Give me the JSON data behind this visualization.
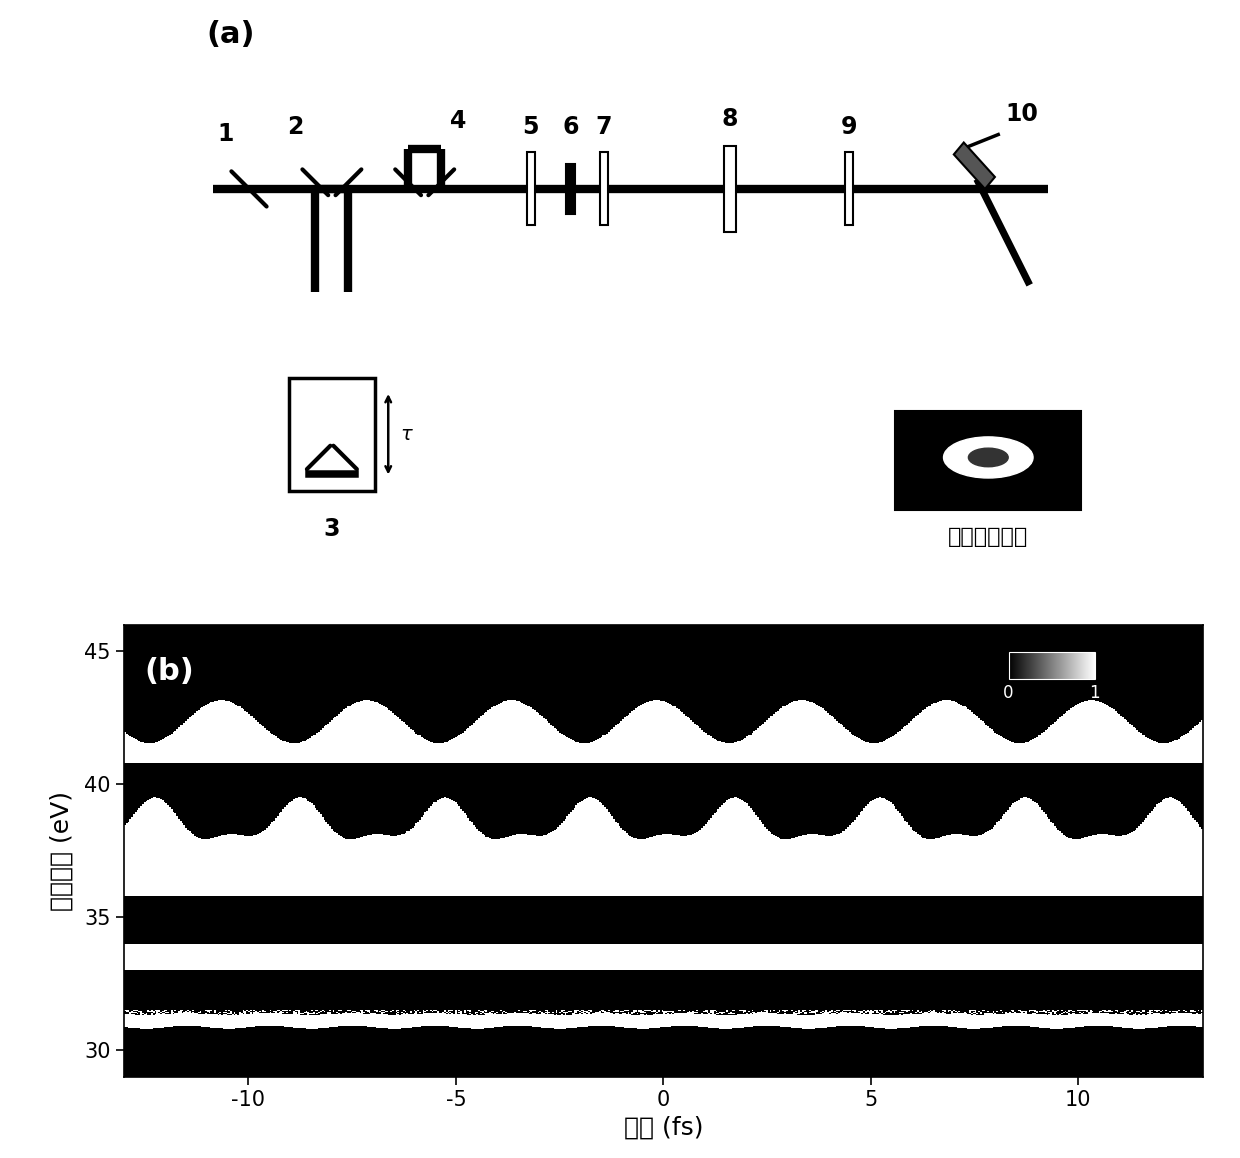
{
  "fig_width": 12.4,
  "fig_height": 11.58,
  "panel_a_label": "(a)",
  "panel_b_label": "(b)",
  "xlabel": "时间 (fs)",
  "ylabel": "光子能量 (eV)",
  "hhg_label": "高次谐波频谱",
  "colorbar_labels": [
    "0",
    "1"
  ],
  "yticks": [
    30,
    35,
    40,
    45
  ],
  "xticks": [
    -10,
    -5,
    0,
    5,
    10
  ],
  "ylim": [
    29,
    46
  ],
  "xlim": [
    -13,
    13
  ],
  "bg_color": "#000000",
  "fg_color": "#ffffff"
}
